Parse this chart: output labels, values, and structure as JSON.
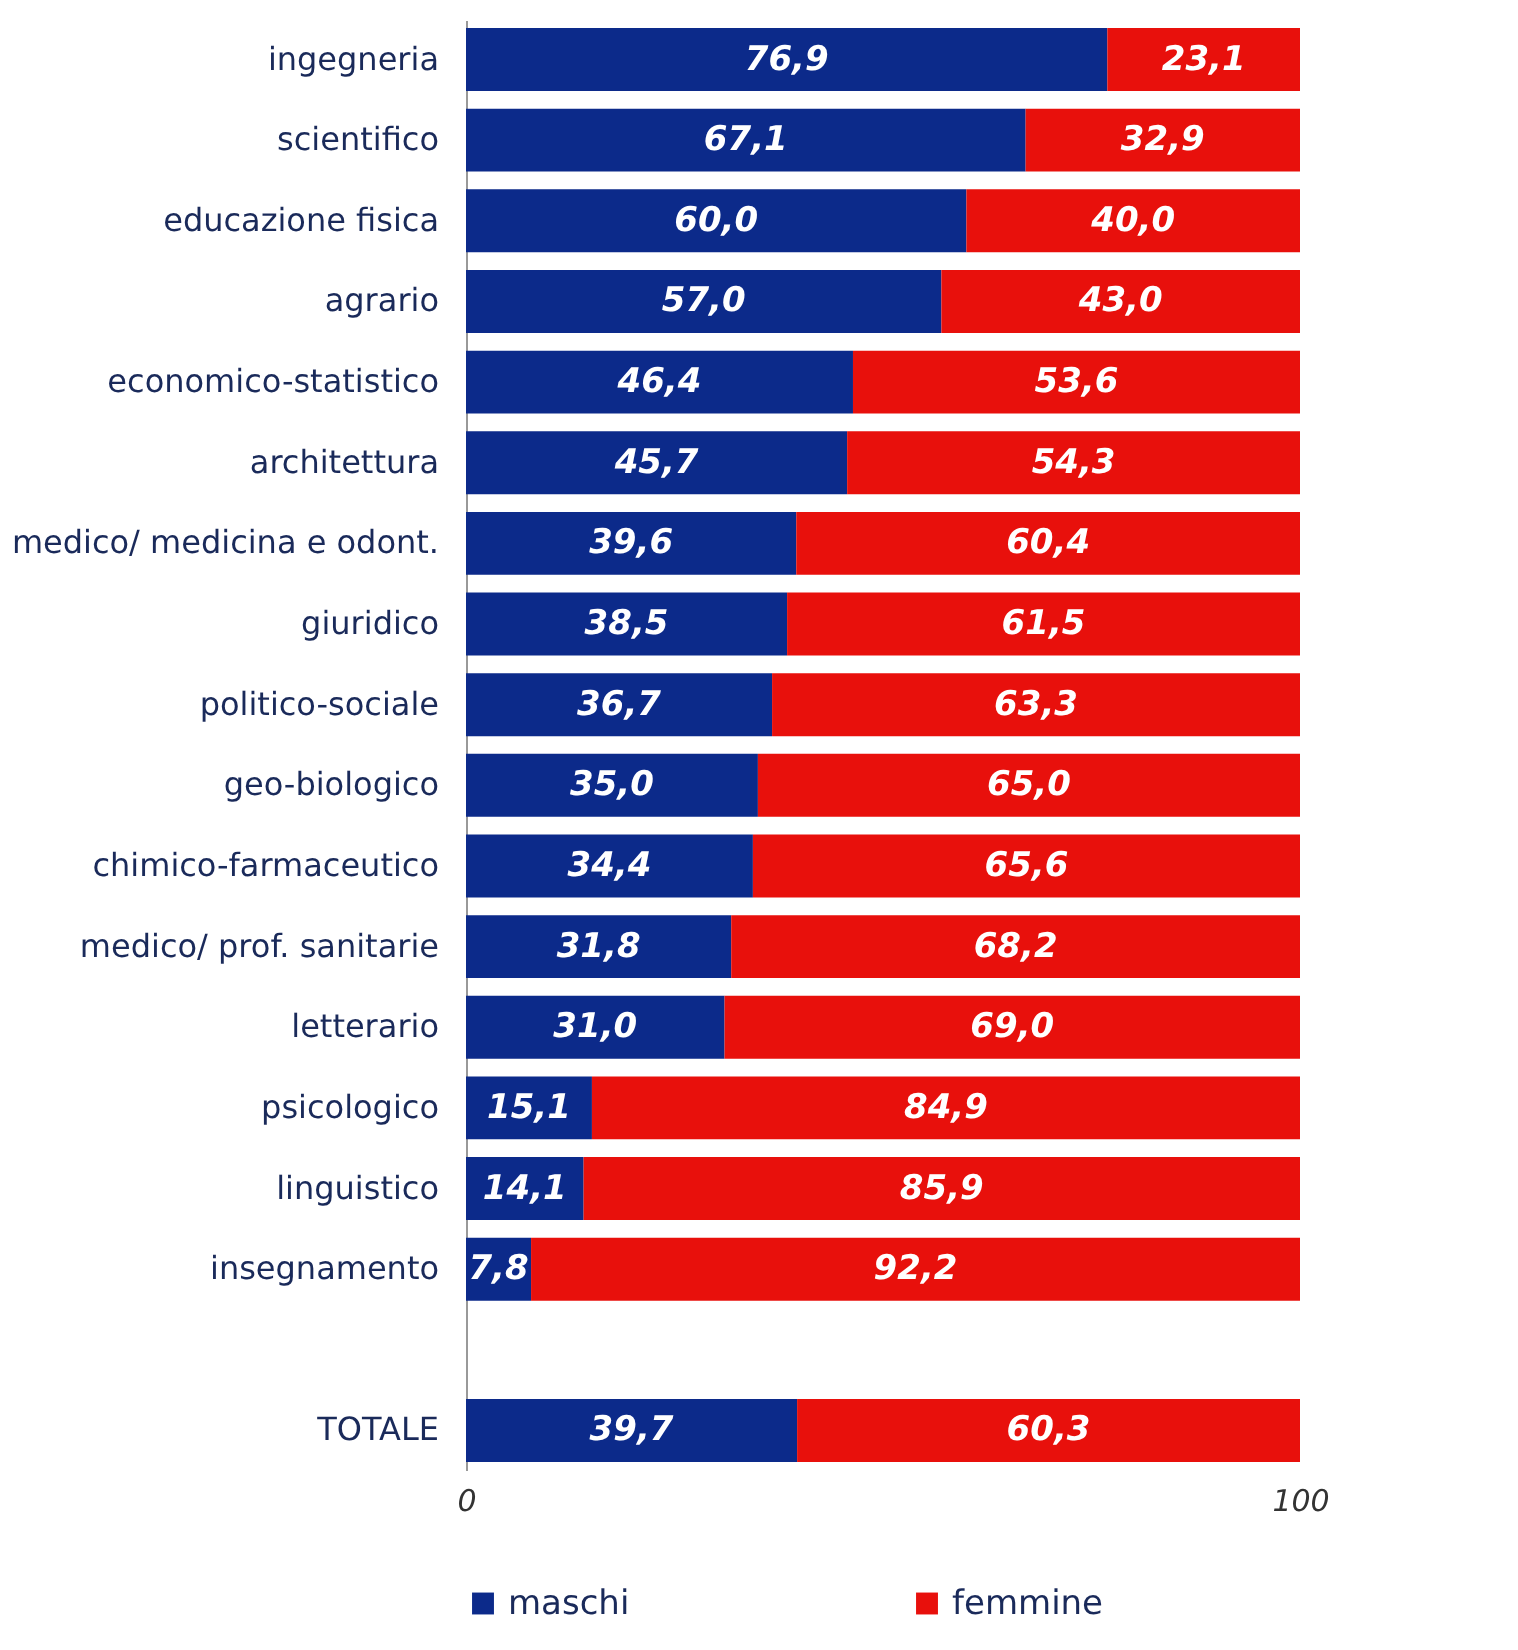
{
  "chart_data": {
    "type": "bar",
    "orientation": "horizontal",
    "stacked": true,
    "categories": [
      "ingegneria",
      "scientifico",
      "educazione fisica",
      "agrario",
      "economico-statistico",
      "architettura",
      "medico/ medicina e odont.",
      "giuridico",
      "politico-sociale",
      "geo-biologico",
      "chimico-farmaceutico",
      "medico/ prof. sanitarie",
      "letterario",
      "psicologico",
      "linguistico",
      "insegnamento",
      null,
      "TOTALE"
    ],
    "series": [
      {
        "name": "maschi",
        "color": "#0c2a8a",
        "values": [
          76.9,
          67.1,
          60.0,
          57.0,
          46.4,
          45.7,
          39.6,
          38.5,
          36.7,
          35.0,
          34.4,
          31.8,
          31.0,
          15.1,
          14.1,
          7.8,
          null,
          39.7
        ],
        "value_labels": [
          "76,9",
          "67,1",
          "60,0",
          "57,0",
          "46,4",
          "45,7",
          "39,6",
          "38,5",
          "36,7",
          "35,0",
          "34,4",
          "31,8",
          "31,0",
          "15,1",
          "14,1",
          "7,8",
          null,
          "39,7"
        ]
      },
      {
        "name": "femmine",
        "color": "#e8100c",
        "values": [
          23.1,
          32.9,
          40.0,
          43.0,
          53.6,
          54.3,
          60.4,
          61.5,
          63.3,
          65.0,
          65.6,
          68.2,
          69.0,
          84.9,
          85.9,
          92.2,
          null,
          60.3
        ],
        "value_labels": [
          "23,1",
          "32,9",
          "40,0",
          "43,0",
          "53,6",
          "54,3",
          "60,4",
          "61,5",
          "63,3",
          "65,0",
          "65,6",
          "68,2",
          "69,0",
          "84,9",
          "85,9",
          "92,2",
          null,
          "60,3"
        ]
      }
    ],
    "xlim": [
      0,
      100
    ],
    "xticks": [
      0,
      100
    ],
    "grid": false,
    "legend": "bottom"
  }
}
